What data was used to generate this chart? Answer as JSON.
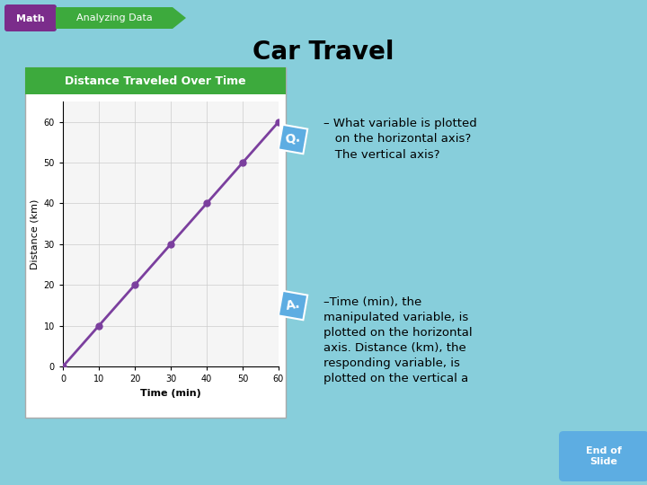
{
  "title": "Car Travel",
  "slide_bg": "#87CEDB",
  "graph_title": "Distance Traveled Over Time",
  "graph_title_bg": "#3DAA3D",
  "graph_title_color": "#FFFFFF",
  "xlabel": "Time (min)",
  "ylabel": "Distance (km)",
  "x_data": [
    0,
    10,
    20,
    30,
    40,
    50,
    60
  ],
  "y_data": [
    0,
    10,
    20,
    30,
    40,
    50,
    60
  ],
  "line_color": "#7B3F9E",
  "marker_color": "#7B3F9E",
  "xlim": [
    0,
    60
  ],
  "ylim": [
    0,
    65
  ],
  "xticks": [
    0,
    10,
    20,
    30,
    40,
    50,
    60
  ],
  "yticks": [
    0,
    10,
    20,
    30,
    40,
    50,
    60
  ],
  "q_label": "Q.",
  "q_bg": "#5DADE2",
  "a_label": "A.",
  "a_bg": "#5DADE2",
  "q_text": "– What variable is plotted\n   on the horizontal axis?\n   The vertical axis?",
  "a_text": "–Time (min), the\nmanipulated variable, is\nplotted on the horizontal\naxis. Distance (km), the\nresponding variable, is\nplotted on the vertical a",
  "end_text": "End of\nSlide",
  "end_bg": "#5DADE2",
  "math_label": "Math",
  "math_bg": "#7B2D8B",
  "analyzing_label": "Analyzing Data",
  "analyzing_bg": "#3DAA3D",
  "title_fontsize": 20,
  "graph_outer_bg": "#FFFFFF",
  "graph_border_color": "#3DAA3D",
  "panel_bg": "#E8E8E8"
}
